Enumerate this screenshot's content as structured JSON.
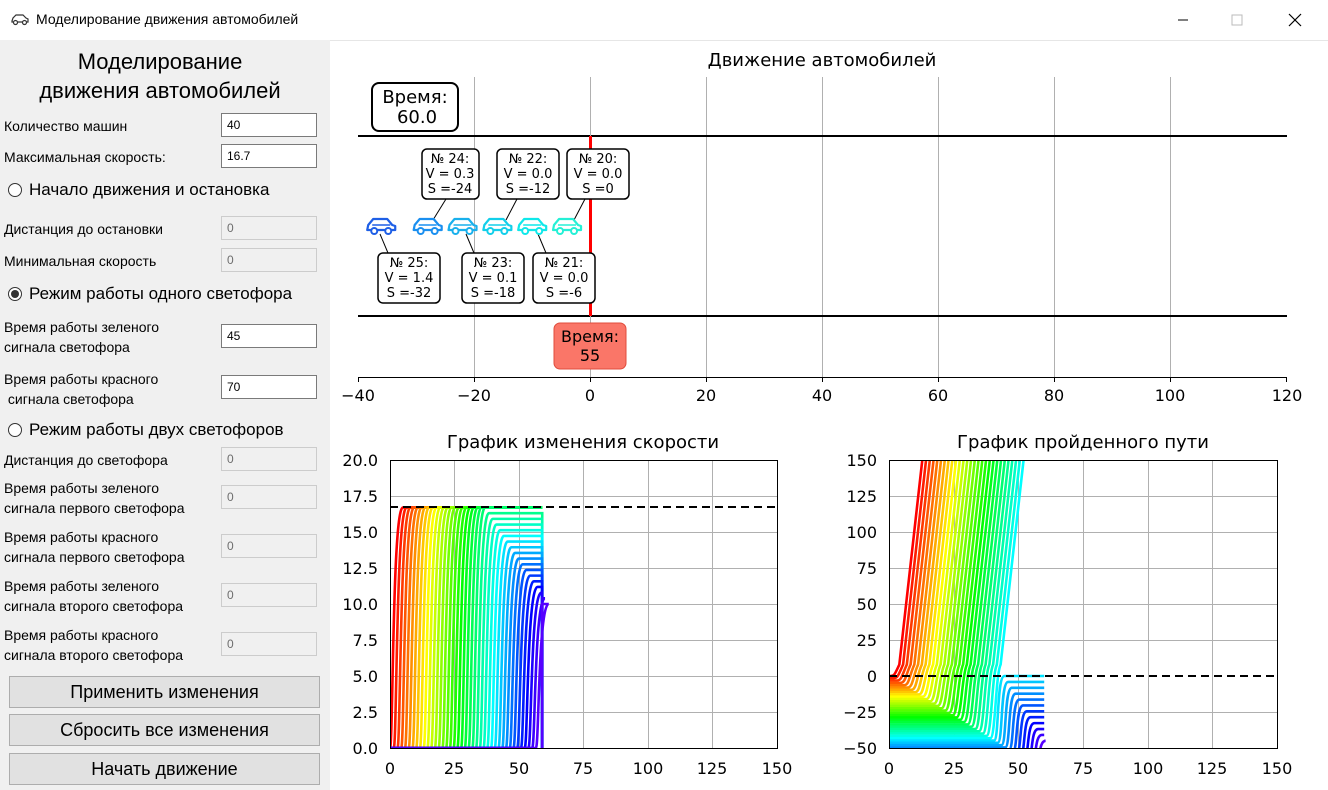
{
  "window": {
    "title": "Моделирование движения автомобилей"
  },
  "panel": {
    "heading_line1": "Моделирование",
    "heading_line2": "движения автомобилей",
    "cars_count_label": "Количество машин",
    "cars_count_value": "40",
    "max_speed_label": "Максимальная скорость:",
    "max_speed_value": "16.7",
    "mode1_label": "Начало движения и остановка",
    "stop_distance_label": "Дистанция до остановки",
    "stop_distance_value": "0",
    "min_speed_label": "Минимальная скорость",
    "min_speed_value": "0",
    "mode2_label": "Режим работы одного светофора",
    "green_time_line1": "Время работы зеленого",
    "green_time_line2": "сигнала светофора",
    "green_time_value": "45",
    "red_time_line1": "Время работы красного",
    "red_time_line2": " сигнала светофора",
    "red_time_value": "70",
    "mode3_label": "Режим работы двух светофоров",
    "light_distance_label": "Дистанция до светофора",
    "light_distance_value": "0",
    "green1_line1": "Время работы зеленого",
    "green1_line2": "сигнала первого светофора",
    "green1_value": "0",
    "red1_line1": "Время работы красного",
    "red1_line2": "сигнала первого светофора",
    "red1_value": "0",
    "green2_line1": "Время работы зеленого",
    "green2_line2": "сигнала второго светофора",
    "green2_value": "0",
    "red2_line1": "Время работы красного",
    "red2_line2": "сигнала второго светофора",
    "red2_value": "0",
    "apply_button": "Применить изменения",
    "reset_button": "Сбросить все изменения",
    "start_button": "Начать движение"
  },
  "road_chart": {
    "title": "Движение автомобилей",
    "time_label": "Время:",
    "time_value": "60.0",
    "light_time_label": "Время:",
    "light_time_value": "55",
    "x_ticks": [
      "−40",
      "−20",
      "0",
      "20",
      "40",
      "60",
      "80",
      "100",
      "120"
    ],
    "labels_top": [
      {
        "n": "№ 24:",
        "v": "V = 0.3",
        "s": "S =-24"
      },
      {
        "n": "№ 22:",
        "v": "V = 0.0",
        "s": "S =-12"
      },
      {
        "n": "№ 20:",
        "v": "V = 0.0",
        "s": "S =0"
      }
    ],
    "labels_bottom": [
      {
        "n": "№ 25:",
        "v": "V = 1.4",
        "s": "S =-32"
      },
      {
        "n": "№ 23:",
        "v": "V = 0.1",
        "s": "S =-18"
      },
      {
        "n": "№ 21:",
        "v": "V = 0.0",
        "s": "S =-6"
      }
    ]
  },
  "speed_chart": {
    "title": "График изменения скорости",
    "y_ticks": [
      "20.0",
      "17.5",
      "15.0",
      "12.5",
      "10.0",
      "7.5",
      "5.0",
      "2.5",
      "0.0"
    ],
    "x_ticks": [
      "0",
      "25",
      "50",
      "75",
      "100",
      "125",
      "150"
    ]
  },
  "path_chart": {
    "title": "График пройденного пути",
    "y_ticks": [
      "150",
      "125",
      "100",
      "75",
      "50",
      "25",
      "0",
      "−25",
      "−50"
    ],
    "x_ticks": [
      "0",
      "25",
      "50",
      "75",
      "100",
      "125",
      "150"
    ]
  },
  "chart_data": [
    {
      "type": "scatter",
      "title": "Движение автомобилей",
      "xlim": [
        -40,
        120
      ],
      "traffic_light_x": 0,
      "traffic_light_color": "#ff0000",
      "cars": [
        {
          "n": 25,
          "x": -36,
          "v": 1.4,
          "s": -32,
          "color": "#1e5fe6"
        },
        {
          "n": 24,
          "x": -28,
          "v": 0.3,
          "s": -24,
          "color": "#1a8ff0"
        },
        {
          "n": 23,
          "x": -22,
          "v": 0.1,
          "s": -18,
          "color": "#19b0ec"
        },
        {
          "n": 22,
          "x": -16,
          "v": 0.0,
          "s": -12,
          "color": "#12cfea"
        },
        {
          "n": 21,
          "x": -10,
          "v": 0.0,
          "s": -6,
          "color": "#0fe8ea"
        },
        {
          "n": 20,
          "x": -4,
          "v": 0.0,
          "s": 0,
          "color": "#25f0d6"
        }
      ]
    },
    {
      "type": "line",
      "title": "График изменения скорости",
      "xlim": [
        0,
        150
      ],
      "ylim": [
        0,
        20
      ],
      "series_count": 40,
      "reference_line_y": 16.7
    },
    {
      "type": "line",
      "title": "График пройденного пути",
      "xlim": [
        0,
        150
      ],
      "ylim": [
        -50,
        150
      ],
      "series_count": 40,
      "reference_line_y": 0
    }
  ]
}
